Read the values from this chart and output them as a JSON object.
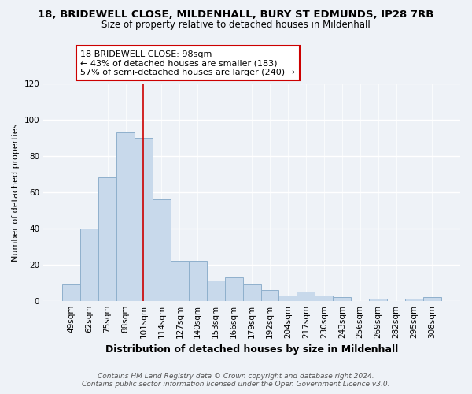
{
  "title_line1": "18, BRIDEWELL CLOSE, MILDENHALL, BURY ST EDMUNDS, IP28 7RB",
  "title_line2": "Size of property relative to detached houses in Mildenhall",
  "xlabel": "Distribution of detached houses by size in Mildenhall",
  "ylabel": "Number of detached properties",
  "bar_labels": [
    "49sqm",
    "62sqm",
    "75sqm",
    "88sqm",
    "101sqm",
    "114sqm",
    "127sqm",
    "140sqm",
    "153sqm",
    "166sqm",
    "179sqm",
    "192sqm",
    "204sqm",
    "217sqm",
    "230sqm",
    "243sqm",
    "256sqm",
    "269sqm",
    "282sqm",
    "295sqm",
    "308sqm"
  ],
  "bar_values": [
    9,
    40,
    68,
    93,
    90,
    56,
    22,
    22,
    11,
    13,
    9,
    6,
    3,
    5,
    3,
    2,
    0,
    1,
    0,
    1,
    2
  ],
  "bar_color": "#c8d9eb",
  "bar_edge_color": "#8fb0cc",
  "highlight_bar_index": 4,
  "highlight_color": "#cc0000",
  "annotation_title": "18 BRIDEWELL CLOSE: 98sqm",
  "annotation_line1": "← 43% of detached houses are smaller (183)",
  "annotation_line2": "57% of semi-detached houses are larger (240) →",
  "annotation_box_color": "#ffffff",
  "annotation_box_edge_color": "#cc0000",
  "ylim": [
    0,
    120
  ],
  "yticks": [
    0,
    20,
    40,
    60,
    80,
    100,
    120
  ],
  "footer_line1": "Contains HM Land Registry data © Crown copyright and database right 2024.",
  "footer_line2": "Contains public sector information licensed under the Open Government Licence v3.0.",
  "background_color": "#eef2f7",
  "grid_color": "#ffffff",
  "title1_fontsize": 9.5,
  "title2_fontsize": 8.5,
  "ylabel_fontsize": 8,
  "xlabel_fontsize": 9,
  "tick_fontsize": 7.5,
  "annotation_fontsize": 8
}
